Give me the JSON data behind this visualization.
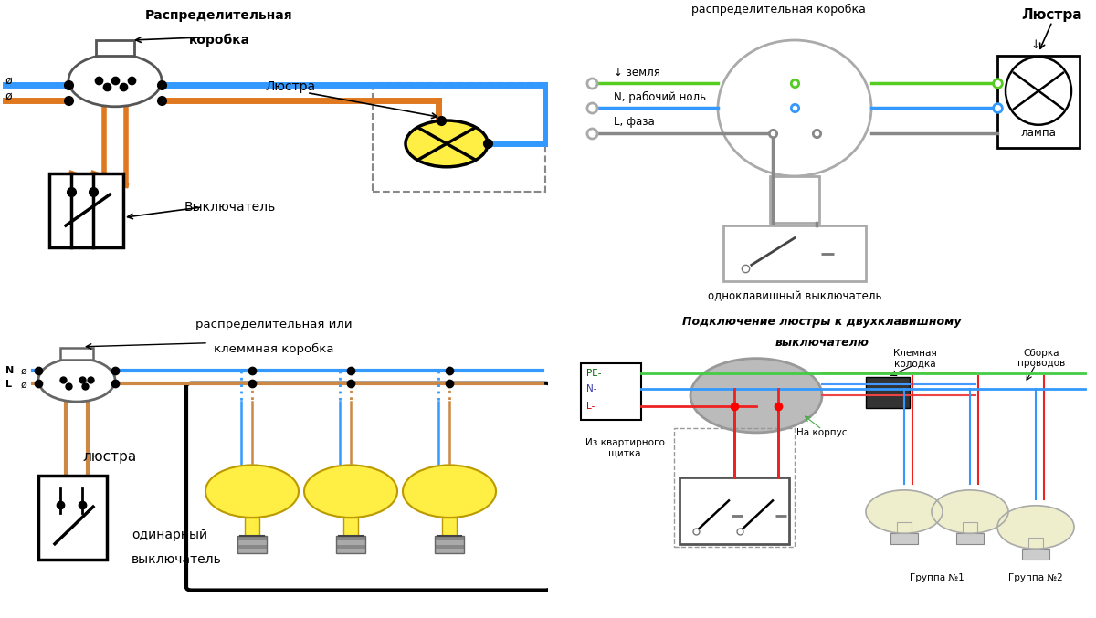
{
  "tl_title1": "Распределительная",
  "tl_title2": "коробка",
  "tl_vyklad": "Выключатель",
  "tl_lyustra": "Люстра",
  "tr_title": "распределительная коробка",
  "tr_lyustra": "Люстра",
  "tr_zemlya": "↓ земля",
  "tr_nol": "N, рабочий ноль",
  "tr_faza": "L, фаза",
  "tr_lampa": "лампа",
  "tr_switch": "одноклавишный выключатель",
  "bl_title1": "распределительная или",
  "bl_title2": "клеммная коробка",
  "bl_lyustra": "люстра",
  "bl_sw1": "одинарный",
  "bl_sw2": "выключатель",
  "br_title1": "Подключение люстры к двухклавишному",
  "br_title2": "выключателю",
  "br_pe": "PE-",
  "br_n": "N-",
  "br_l": "L-",
  "br_from": "Из квартирного\nщитка",
  "br_terminal": "Клемная\nколодка",
  "br_assembly": "Сборка\nпроводов",
  "br_corpus": "На корпус",
  "br_group1": "Группа №1",
  "br_group2": "Группа №2",
  "col_blue": "#3399ff",
  "col_orange": "#e07820",
  "col_green": "#55cc22",
  "col_gray": "#888888",
  "col_red": "#ee2222",
  "col_yellow": "#ffee44",
  "col_brown": "#cc8844",
  "bg_tl": "#ffffff",
  "bg_tr": "#ffffff",
  "bg_bl": "#cccccc",
  "bg_br": "#d0ecd0"
}
